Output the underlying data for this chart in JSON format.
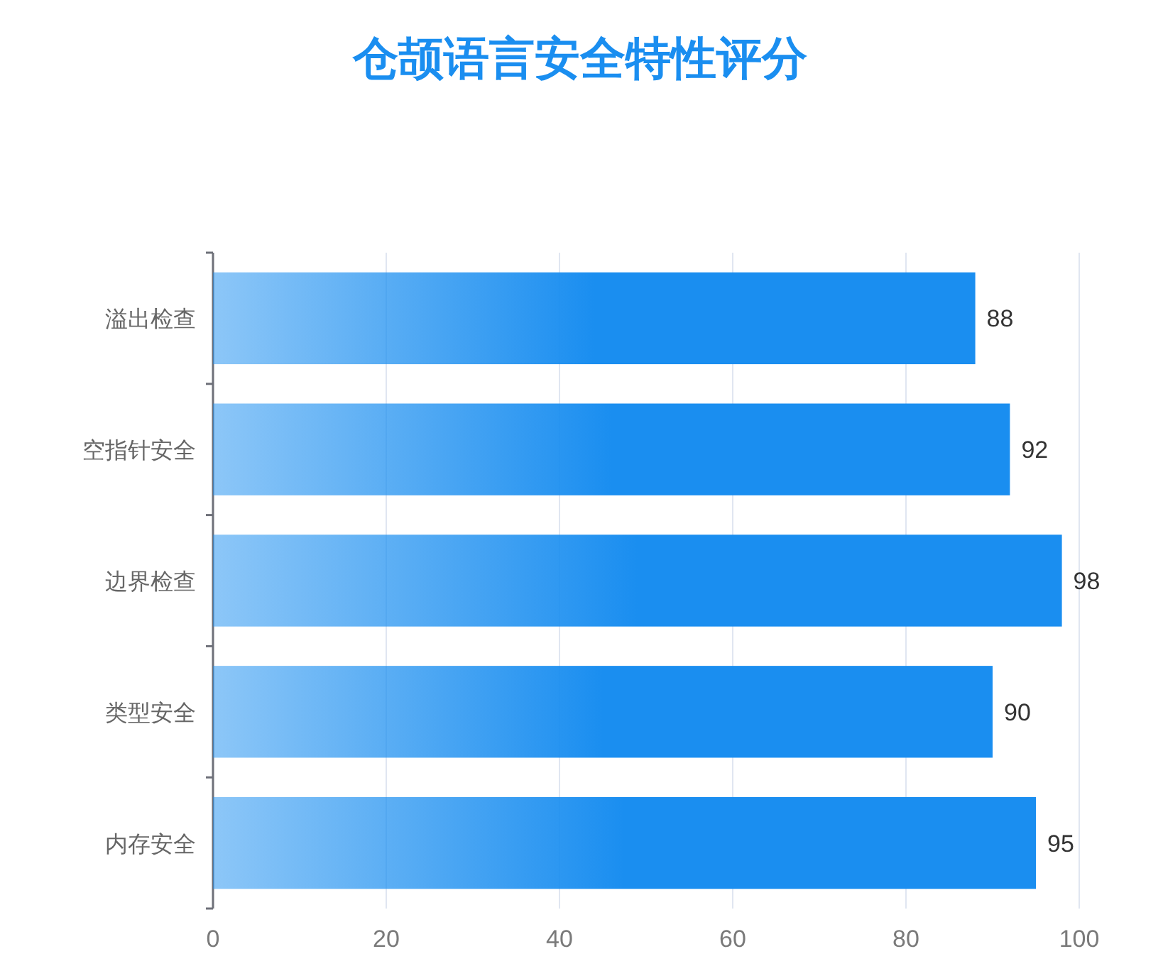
{
  "chart_data": {
    "type": "bar",
    "title": "仓颉语言安全特性评分",
    "orientation": "horizontal",
    "categories": [
      "溢出检查",
      "空指针安全",
      "边界检查",
      "类型安全",
      "内存安全"
    ],
    "series": [
      {
        "color": "#1a8ef0",
        "values": [
          88,
          92,
          98,
          90,
          95
        ]
      }
    ],
    "xlim": [
      0,
      100
    ],
    "xticks": [
      0,
      20,
      40,
      60,
      80,
      100
    ],
    "grid": "x",
    "data_labels": true
  }
}
